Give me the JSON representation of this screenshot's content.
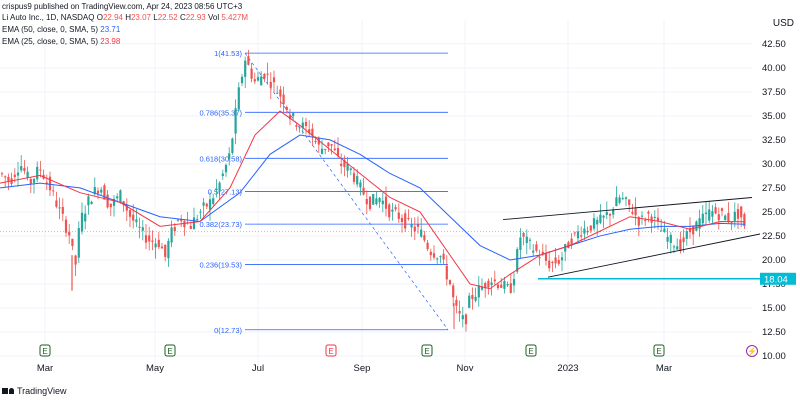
{
  "header": {
    "attribution": "crispus9 published on TradingView.com, Apr 24, 2023 08:56 UTC+3",
    "symbol_label": "Li Auto Inc., 1D, NASDAQ",
    "ohlc": [
      {
        "key": "O",
        "value": "22.94"
      },
      {
        "key": "H",
        "value": "23.07"
      },
      {
        "key": "L",
        "value": "22.52"
      },
      {
        "key": "C",
        "value": "22.93"
      }
    ],
    "volume_label": "Vol",
    "volume": "5.427M",
    "ema50_label": "EMA (50, close, 0, SMA, 5)",
    "ema50_value": "23.71",
    "ema25_label": "EMA (25, close, 0, SMA, 5)",
    "ema25_value": "23.98"
  },
  "colors": {
    "up": "#26a69a",
    "down": "#ef5350",
    "ema50": "#2962ff",
    "ema25": "#f23645",
    "fib": "#2962ff",
    "trend": "#131722",
    "support": "#00bcd4",
    "grid": "#f0f3fa"
  },
  "currency": "USD",
  "branding": "TradingView",
  "chart_data": {
    "type": "candlestick",
    "y_ticks": [
      "42.50",
      "40.00",
      "37.50",
      "35.00",
      "32.50",
      "30.00",
      "27.50",
      "25.00",
      "22.50",
      "20.00",
      "17.50",
      "15.00",
      "12.50",
      "10.00"
    ],
    "ylim": [
      10,
      43
    ],
    "x_labels": [
      "Mar",
      "May",
      "Jul",
      "Sep",
      "Nov",
      "2023",
      "Mar"
    ],
    "last_price": "22.93",
    "support_level": "18.04",
    "fib_levels": [
      {
        "ratio": "1",
        "price": 41.53,
        "label": "1(41.53)"
      },
      {
        "ratio": "0.786",
        "price": 35.37,
        "label": "0.786(35.37)"
      },
      {
        "ratio": "0.618",
        "price": 30.58,
        "label": "0.618(30.58)"
      },
      {
        "ratio": "0.5",
        "price": 27.13,
        "label": "0.5(27.13)"
      },
      {
        "ratio": "0.382",
        "price": 23.73,
        "label": "0.382(23.73)"
      },
      {
        "ratio": "0.236",
        "price": 19.53,
        "label": "0.236(19.53)"
      },
      {
        "ratio": "0",
        "price": 12.73,
        "label": "0(12.73)"
      }
    ],
    "event_markers": [
      {
        "type": "earnings",
        "symbol": "E"
      },
      {
        "type": "earnings",
        "symbol": "E"
      },
      {
        "type": "dividend",
        "symbol": "E"
      },
      {
        "type": "earnings",
        "symbol": "E"
      },
      {
        "type": "earnings",
        "symbol": "E"
      },
      {
        "type": "earnings",
        "symbol": "E"
      },
      {
        "type": "upcoming",
        "symbol": "⚡"
      }
    ],
    "price_path": [
      [
        0,
        29.0
      ],
      [
        10,
        28.2
      ],
      [
        20,
        30.1
      ],
      [
        30,
        28.0
      ],
      [
        40,
        29.6
      ],
      [
        50,
        27.5
      ],
      [
        60,
        25.0
      ],
      [
        70,
        22.5
      ],
      [
        75,
        19.0
      ],
      [
        80,
        24.0
      ],
      [
        90,
        26.5
      ],
      [
        100,
        27.8
      ],
      [
        110,
        25.5
      ],
      [
        120,
        26.8
      ],
      [
        130,
        24.6
      ],
      [
        140,
        23.0
      ],
      [
        150,
        22.0
      ],
      [
        160,
        21.8
      ],
      [
        165,
        20.2
      ],
      [
        170,
        22.5
      ],
      [
        180,
        24.5
      ],
      [
        190,
        23.5
      ],
      [
        200,
        25.0
      ],
      [
        210,
        26.0
      ],
      [
        220,
        28.0
      ],
      [
        230,
        31.0
      ],
      [
        238,
        37.0
      ],
      [
        245,
        41.0
      ],
      [
        255,
        38.5
      ],
      [
        265,
        39.5
      ],
      [
        275,
        38.0
      ],
      [
        285,
        36.5
      ],
      [
        290,
        35.0
      ],
      [
        300,
        34.0
      ],
      [
        310,
        33.5
      ],
      [
        320,
        31.5
      ],
      [
        330,
        32.2
      ],
      [
        340,
        30.0
      ],
      [
        350,
        29.5
      ],
      [
        360,
        27.5
      ],
      [
        370,
        26.0
      ],
      [
        380,
        26.5
      ],
      [
        390,
        25.0
      ],
      [
        400,
        24.5
      ],
      [
        410,
        23.5
      ],
      [
        420,
        23.0
      ],
      [
        430,
        21.0
      ],
      [
        440,
        20.5
      ],
      [
        450,
        17.5
      ],
      [
        455,
        15.0
      ],
      [
        460,
        14.0
      ],
      [
        465,
        13.5
      ],
      [
        470,
        16.0
      ],
      [
        480,
        17.0
      ],
      [
        490,
        18.0
      ],
      [
        500,
        17.5
      ],
      [
        510,
        16.8
      ],
      [
        515,
        19.0
      ],
      [
        520,
        22.5
      ],
      [
        530,
        21.5
      ],
      [
        540,
        20.5
      ],
      [
        550,
        19.5
      ],
      [
        560,
        20.0
      ],
      [
        570,
        22.0
      ],
      [
        580,
        23.0
      ],
      [
        590,
        23.5
      ],
      [
        600,
        24.0
      ],
      [
        610,
        25.0
      ],
      [
        620,
        26.5
      ],
      [
        630,
        25.5
      ],
      [
        640,
        24.0
      ],
      [
        650,
        24.8
      ],
      [
        660,
        23.2
      ],
      [
        670,
        22.0
      ],
      [
        680,
        21.5
      ],
      [
        690,
        23.0
      ],
      [
        700,
        24.0
      ],
      [
        710,
        25.0
      ],
      [
        720,
        24.8
      ],
      [
        730,
        24.2
      ],
      [
        740,
        25.0
      ],
      [
        745,
        22.9
      ]
    ],
    "ema50_path": [
      [
        0,
        27.5
      ],
      [
        40,
        28.0
      ],
      [
        80,
        27.5
      ],
      [
        120,
        26.0
      ],
      [
        160,
        24.5
      ],
      [
        200,
        24.0
      ],
      [
        240,
        27.0
      ],
      [
        270,
        31.0
      ],
      [
        300,
        33.0
      ],
      [
        330,
        32.5
      ],
      [
        360,
        31.0
      ],
      [
        390,
        29.0
      ],
      [
        420,
        27.5
      ],
      [
        450,
        24.5
      ],
      [
        480,
        21.5
      ],
      [
        510,
        20.0
      ],
      [
        540,
        20.5
      ],
      [
        570,
        21.5
      ],
      [
        600,
        22.5
      ],
      [
        630,
        23.2
      ],
      [
        660,
        23.5
      ],
      [
        690,
        23.5
      ],
      [
        720,
        23.8
      ],
      [
        745,
        23.71
      ]
    ],
    "ema25_path": [
      [
        0,
        28.0
      ],
      [
        40,
        28.8
      ],
      [
        80,
        27.0
      ],
      [
        120,
        26.0
      ],
      [
        160,
        23.5
      ],
      [
        200,
        24.0
      ],
      [
        230,
        27.5
      ],
      [
        255,
        33.0
      ],
      [
        280,
        35.5
      ],
      [
        300,
        34.0
      ],
      [
        330,
        31.5
      ],
      [
        360,
        29.0
      ],
      [
        390,
        26.5
      ],
      [
        420,
        25.0
      ],
      [
        450,
        20.5
      ],
      [
        470,
        17.5
      ],
      [
        490,
        17.0
      ],
      [
        510,
        18.5
      ],
      [
        540,
        20.5
      ],
      [
        570,
        21.5
      ],
      [
        600,
        23.0
      ],
      [
        630,
        24.5
      ],
      [
        660,
        24.0
      ],
      [
        690,
        23.2
      ],
      [
        720,
        24.0
      ],
      [
        745,
        23.98
      ]
    ]
  }
}
